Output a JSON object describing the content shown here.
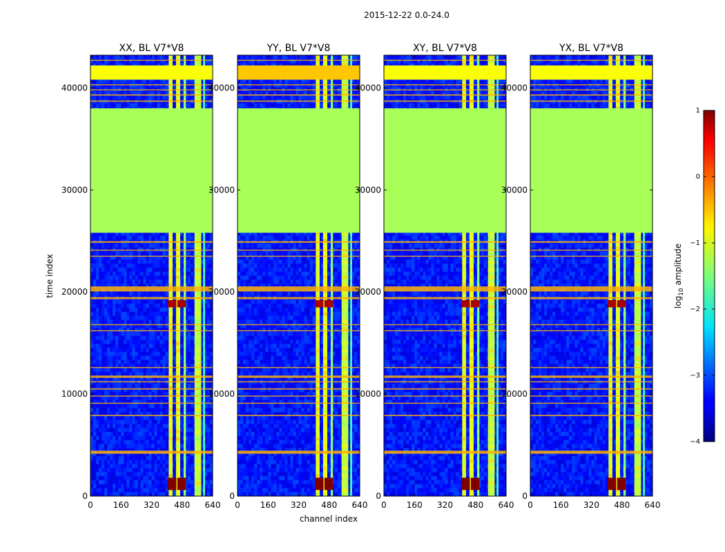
{
  "chart_data": {
    "type": "heatmap",
    "suptitle": "2015-12-22 0.0-24.0",
    "xlabel": "channel index",
    "ylabel": "time index",
    "xlim": [
      0,
      640
    ],
    "ylim": [
      0,
      43200
    ],
    "xticks": [
      0,
      160,
      320,
      480,
      640
    ],
    "yticks": [
      0,
      10000,
      20000,
      30000,
      40000
    ],
    "xtick_labels": [
      "0",
      "160",
      "320",
      "480",
      "640"
    ],
    "ytick_labels": [
      "0",
      "10000",
      "20000",
      "30000",
      "40000"
    ],
    "colormap": "jet",
    "colorbar": {
      "label": "log10 amplitude",
      "label_main": "log",
      "label_sub": "10",
      "label_tail": " amplitude",
      "range": [
        -4,
        1
      ],
      "ticks": [
        1,
        0,
        -1,
        -2,
        -3,
        -4
      ],
      "tick_labels": [
        "1",
        "0",
        "−1",
        "−2",
        "−3",
        "−4"
      ]
    },
    "panels": [
      {
        "title": "XX, BL V7*V8",
        "pol": "XX"
      },
      {
        "title": "YY, BL V7*V8",
        "pol": "YY"
      },
      {
        "title": "XY, BL V7*V8",
        "pol": "XY"
      },
      {
        "title": "YX, BL V7*V8",
        "pol": "YX"
      }
    ],
    "regions": {
      "background_value": -3.3,
      "flat_block": {
        "t_start": 25800,
        "t_end": 38000,
        "value": -1.3
      },
      "bright_band": {
        "t_start": 40800,
        "t_end": 42200,
        "value": -0.9
      },
      "bright_channel_bands": [
        {
          "c_start": 410,
          "c_end": 430,
          "value": -1.0
        },
        {
          "c_start": 448,
          "c_end": 470,
          "value": -1.0
        },
        {
          "c_start": 488,
          "c_end": 500,
          "value": -1.5
        },
        {
          "c_start": 545,
          "c_end": 580,
          "value": -1.2
        },
        {
          "c_start": 590,
          "c_end": 600,
          "value": -1.8
        }
      ],
      "saturated_blocks": [
        {
          "c_start": 405,
          "c_end": 450,
          "t_start": 600,
          "t_end": 1800,
          "value": 1.0
        },
        {
          "c_start": 455,
          "c_end": 500,
          "t_start": 600,
          "t_end": 1800,
          "value": 1.0
        },
        {
          "c_start": 405,
          "c_end": 450,
          "t_start": 18500,
          "t_end": 19200,
          "value": 0.8
        },
        {
          "c_start": 455,
          "c_end": 500,
          "t_start": 18500,
          "t_end": 19200,
          "value": 0.8
        }
      ],
      "flagged_rows": [
        {
          "t": 4300,
          "width": 300
        },
        {
          "t": 7900,
          "width": 120
        },
        {
          "t": 9100,
          "width": 100
        },
        {
          "t": 9800,
          "width": 100
        },
        {
          "t": 10500,
          "width": 120
        },
        {
          "t": 11200,
          "width": 100
        },
        {
          "t": 11700,
          "width": 220
        },
        {
          "t": 12600,
          "width": 100
        },
        {
          "t": 16200,
          "width": 100
        },
        {
          "t": 16800,
          "width": 100
        },
        {
          "t": 19400,
          "width": 200
        },
        {
          "t": 20300,
          "width": 500
        },
        {
          "t": 23500,
          "width": 100
        },
        {
          "t": 24100,
          "width": 100
        },
        {
          "t": 24900,
          "width": 150
        },
        {
          "t": 38700,
          "width": 120
        },
        {
          "t": 39300,
          "width": 120
        },
        {
          "t": 39800,
          "width": 100
        },
        {
          "t": 40300,
          "width": 100
        },
        {
          "t": 42700,
          "width": 100
        }
      ],
      "row_flag_value": -0.5
    }
  }
}
